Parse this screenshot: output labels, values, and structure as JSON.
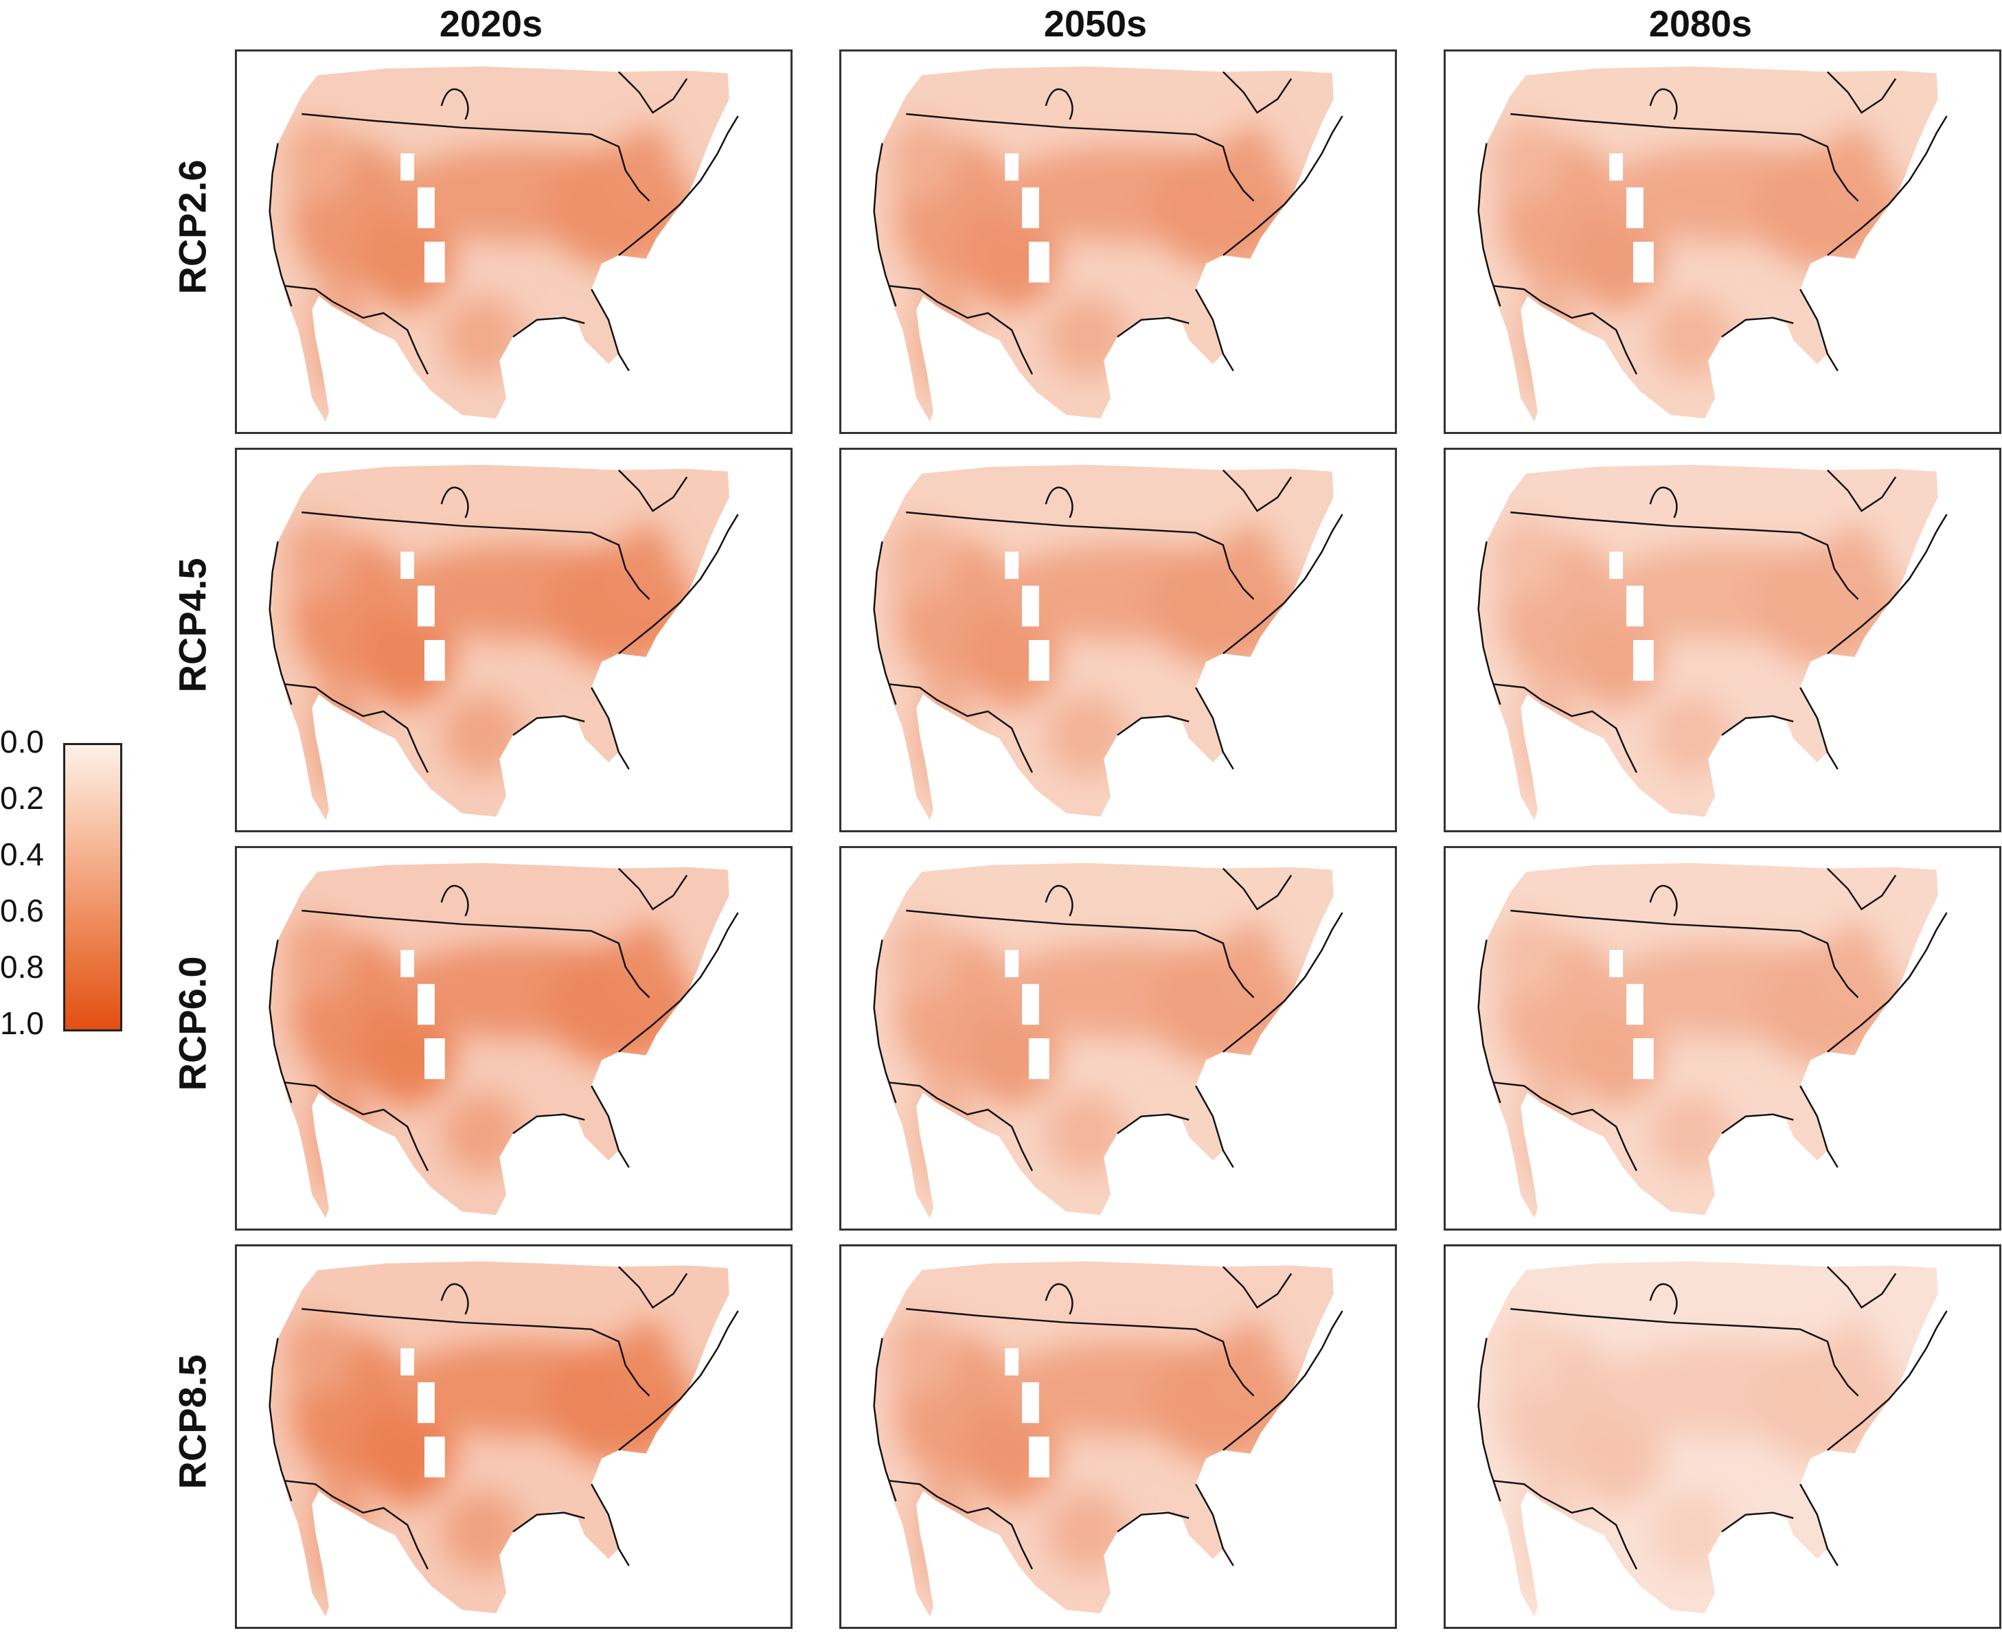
{
  "column_titles": [
    "2020s",
    "2050s",
    "2080s"
  ],
  "row_titles": [
    "RCP2.6",
    "RCP4.5",
    "RCP6.0",
    "RCP8.5"
  ],
  "legend": {
    "ticks": [
      "0.0",
      "0.2",
      "0.4",
      "0.6",
      "0.8",
      "1.0"
    ],
    "color_low": "#fdf1ea",
    "color_high": "#e34f12"
  },
  "panels": [
    {
      "row": "RCP2.6",
      "col": "2020s",
      "intensity": 0.62
    },
    {
      "row": "RCP2.6",
      "col": "2050s",
      "intensity": 0.58
    },
    {
      "row": "RCP2.6",
      "col": "2080s",
      "intensity": 0.52
    },
    {
      "row": "RCP4.5",
      "col": "2020s",
      "intensity": 0.66
    },
    {
      "row": "RCP4.5",
      "col": "2050s",
      "intensity": 0.55
    },
    {
      "row": "RCP4.5",
      "col": "2080s",
      "intensity": 0.45
    },
    {
      "row": "RCP6.0",
      "col": "2020s",
      "intensity": 0.68
    },
    {
      "row": "RCP6.0",
      "col": "2050s",
      "intensity": 0.52
    },
    {
      "row": "RCP6.0",
      "col": "2080s",
      "intensity": 0.44
    },
    {
      "row": "RCP8.5",
      "col": "2020s",
      "intensity": 0.7
    },
    {
      "row": "RCP8.5",
      "col": "2050s",
      "intensity": 0.56
    },
    {
      "row": "RCP8.5",
      "col": "2080s",
      "intensity": 0.28
    }
  ]
}
